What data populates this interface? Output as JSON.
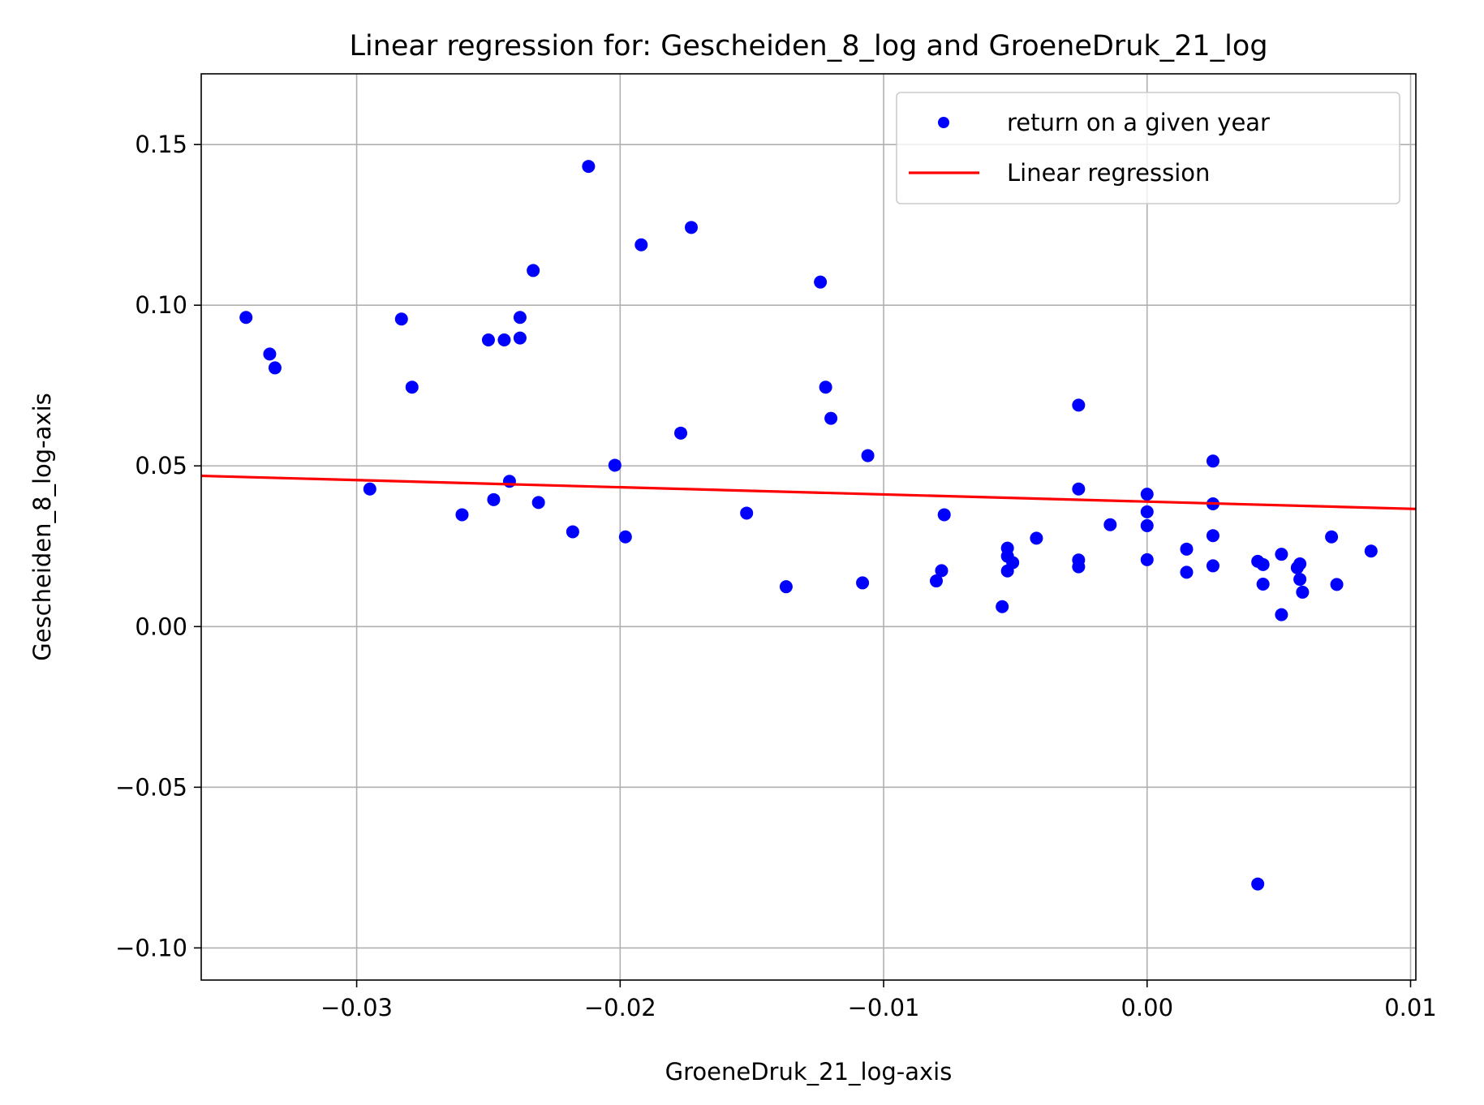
{
  "chart_data": {
    "type": "scatter",
    "title": "Linear regression for: Gescheiden_8_log and GroeneDruk_21_log",
    "xlabel": "GroeneDruk_21_log-axis",
    "ylabel": "Gescheiden_8_log-axis",
    "xlim": [
      -0.0359,
      0.0102
    ],
    "ylim": [
      -0.11,
      0.172
    ],
    "xticks": [
      -0.03,
      -0.02,
      -0.01,
      0.0,
      0.01
    ],
    "xtick_labels": [
      "−0.03",
      "−0.02",
      "−0.01",
      "0.00",
      "0.01"
    ],
    "yticks": [
      -0.1,
      -0.05,
      0.0,
      0.05,
      0.1,
      0.15
    ],
    "ytick_labels": [
      "−0.10",
      "−0.05",
      "0.00",
      "0.05",
      "0.10",
      "0.15"
    ],
    "grid": true,
    "legend_position": "top-right",
    "series": [
      {
        "name": "return on a given year",
        "kind": "scatter",
        "color": "#0000ff",
        "points": [
          [
            -0.0342,
            0.0962
          ],
          [
            -0.0333,
            0.0848
          ],
          [
            -0.0331,
            0.0805
          ],
          [
            -0.0295,
            0.0428
          ],
          [
            -0.0283,
            0.0957
          ],
          [
            -0.0279,
            0.0745
          ],
          [
            -0.026,
            0.0348
          ],
          [
            -0.025,
            0.0892
          ],
          [
            -0.0248,
            0.0395
          ],
          [
            -0.0244,
            0.0892
          ],
          [
            -0.0242,
            0.0452
          ],
          [
            -0.0238,
            0.0962
          ],
          [
            -0.0238,
            0.0898
          ],
          [
            -0.0233,
            0.1108
          ],
          [
            -0.0231,
            0.0386
          ],
          [
            -0.0218,
            0.0295
          ],
          [
            -0.0212,
            0.1432
          ],
          [
            -0.0202,
            0.0502
          ],
          [
            -0.0198,
            0.0279
          ],
          [
            -0.0192,
            0.1188
          ],
          [
            -0.0177,
            0.0602
          ],
          [
            -0.0173,
            0.1242
          ],
          [
            -0.0152,
            0.0353
          ],
          [
            -0.0137,
            0.0124
          ],
          [
            -0.0124,
            0.1072
          ],
          [
            -0.0122,
            0.0745
          ],
          [
            -0.012,
            0.0648
          ],
          [
            -0.0108,
            0.0136
          ],
          [
            -0.0106,
            0.0532
          ],
          [
            -0.008,
            0.0142
          ],
          [
            -0.0078,
            0.0174
          ],
          [
            -0.0077,
            0.0348
          ],
          [
            -0.0055,
            0.0062
          ],
          [
            -0.0053,
            0.0244
          ],
          [
            -0.0053,
            0.0173
          ],
          [
            -0.0053,
            0.0219
          ],
          [
            -0.0051,
            0.0199
          ],
          [
            -0.0042,
            0.0275
          ],
          [
            -0.0026,
            0.0207
          ],
          [
            -0.0026,
            0.0186
          ],
          [
            -0.0026,
            0.0689
          ],
          [
            -0.0026,
            0.0428
          ],
          [
            -0.0014,
            0.0317
          ],
          [
            0.0,
            0.0412
          ],
          [
            0.0,
            0.0357
          ],
          [
            0.0,
            0.0314
          ],
          [
            0.0,
            0.0208
          ],
          [
            0.0015,
            0.0241
          ],
          [
            0.0015,
            0.0169
          ],
          [
            0.0025,
            0.0515
          ],
          [
            0.0025,
            0.0382
          ],
          [
            0.0025,
            0.0283
          ],
          [
            0.0025,
            0.0189
          ],
          [
            0.0042,
            0.0203
          ],
          [
            0.0044,
            0.0193
          ],
          [
            0.0044,
            0.0132
          ],
          [
            0.0051,
            0.0225
          ],
          [
            0.0051,
            0.0037
          ],
          [
            0.0057,
            0.0183
          ],
          [
            0.0058,
            0.0195
          ],
          [
            0.0058,
            0.0147
          ],
          [
            0.0059,
            0.0107
          ],
          [
            0.007,
            0.0279
          ],
          [
            0.0072,
            0.0131
          ],
          [
            0.0085,
            0.0235
          ],
          [
            0.0042,
            -0.0801
          ]
        ]
      },
      {
        "name": "Linear regression",
        "kind": "line",
        "color": "#ff0000",
        "points": [
          [
            -0.0359,
            0.0469
          ],
          [
            0.0102,
            0.0366
          ]
        ]
      }
    ]
  }
}
